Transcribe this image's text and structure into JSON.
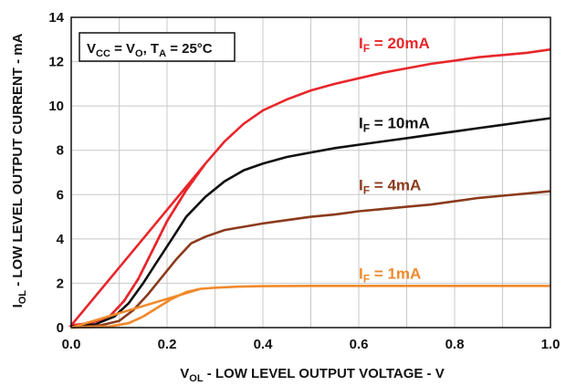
{
  "chart_data": {
    "type": "line",
    "xlabel": {
      "main": "V",
      "sub": "OL",
      "rest": " - LOW LEVEL OUTPUT VOLTAGE - V"
    },
    "ylabel": {
      "main": "I",
      "sub": "OL",
      "rest": " - LOW LEVEL OUTPUT CURRENT - mA"
    },
    "xlim": [
      0.0,
      1.0
    ],
    "ylim": [
      0,
      14
    ],
    "x_ticks": [
      "0.0",
      "0.2",
      "0.4",
      "0.6",
      "0.8",
      "1.0"
    ],
    "y_ticks": [
      "0",
      "2",
      "4",
      "6",
      "8",
      "10",
      "12",
      "14"
    ],
    "grid": true,
    "annotation": {
      "vcc_main": "V",
      "vcc_sub": "CC",
      "eq1": " = V",
      "v0_sub": "O",
      "comma": ", T",
      "ta_sub": "A",
      "temp": " = 25°C"
    },
    "series": [
      {
        "name": {
          "main": "I",
          "sub": "F",
          "rest": " = 20mA"
        },
        "color": "#e8262a",
        "dashed_until_x": 0.3,
        "x": [
          0.0,
          0.04,
          0.08,
          0.11,
          0.14,
          0.17,
          0.2,
          0.24,
          0.28,
          0.32,
          0.36,
          0.4,
          0.45,
          0.5,
          0.55,
          0.6,
          0.65,
          0.7,
          0.75,
          0.8,
          0.85,
          0.9,
          0.95,
          1.0
        ],
        "y": [
          0.1,
          0.2,
          0.5,
          1.2,
          2.2,
          3.5,
          4.8,
          6.2,
          7.4,
          8.4,
          9.2,
          9.8,
          10.3,
          10.7,
          11.0,
          11.25,
          11.5,
          11.7,
          11.9,
          12.05,
          12.2,
          12.3,
          12.4,
          12.55
        ]
      },
      {
        "name": {
          "main": "I",
          "sub": "F",
          "rest": " = 10mA"
        },
        "color": "#111111",
        "x": [
          0.0,
          0.05,
          0.09,
          0.12,
          0.15,
          0.18,
          0.21,
          0.24,
          0.28,
          0.32,
          0.36,
          0.4,
          0.45,
          0.5,
          0.55,
          0.6,
          0.65,
          0.7,
          0.75,
          0.8,
          0.85,
          0.9,
          0.95,
          1.0
        ],
        "y": [
          0.05,
          0.15,
          0.5,
          1.1,
          2.0,
          3.0,
          4.0,
          5.0,
          5.9,
          6.6,
          7.1,
          7.4,
          7.7,
          7.9,
          8.1,
          8.25,
          8.4,
          8.55,
          8.7,
          8.85,
          9.0,
          9.15,
          9.3,
          9.45
        ]
      },
      {
        "name": {
          "main": "I",
          "sub": "F",
          "rest": " = 4mA"
        },
        "color": "#8b3a1c",
        "x": [
          0.0,
          0.06,
          0.1,
          0.13,
          0.16,
          0.19,
          0.22,
          0.25,
          0.28,
          0.32,
          0.36,
          0.4,
          0.45,
          0.5,
          0.55,
          0.6,
          0.65,
          0.7,
          0.75,
          0.8,
          0.85,
          0.9,
          0.95,
          1.0
        ],
        "y": [
          0.0,
          0.1,
          0.3,
          0.8,
          1.5,
          2.3,
          3.1,
          3.8,
          4.1,
          4.4,
          4.55,
          4.7,
          4.85,
          5.0,
          5.1,
          5.25,
          5.35,
          5.45,
          5.55,
          5.7,
          5.85,
          5.95,
          6.05,
          6.15
        ]
      },
      {
        "name": {
          "main": "I",
          "sub": "F",
          "rest": " = 1mA"
        },
        "color": "#f08a2c",
        "dashed_until_x": 0.28,
        "x": [
          0.0,
          0.08,
          0.12,
          0.15,
          0.18,
          0.21,
          0.24,
          0.27,
          0.3,
          0.35,
          0.4,
          0.5,
          0.6,
          0.7,
          0.8,
          0.9,
          1.0
        ],
        "y": [
          0.0,
          0.05,
          0.2,
          0.5,
          0.9,
          1.3,
          1.6,
          1.75,
          1.8,
          1.85,
          1.87,
          1.88,
          1.88,
          1.88,
          1.88,
          1.88,
          1.88
        ]
      }
    ]
  }
}
